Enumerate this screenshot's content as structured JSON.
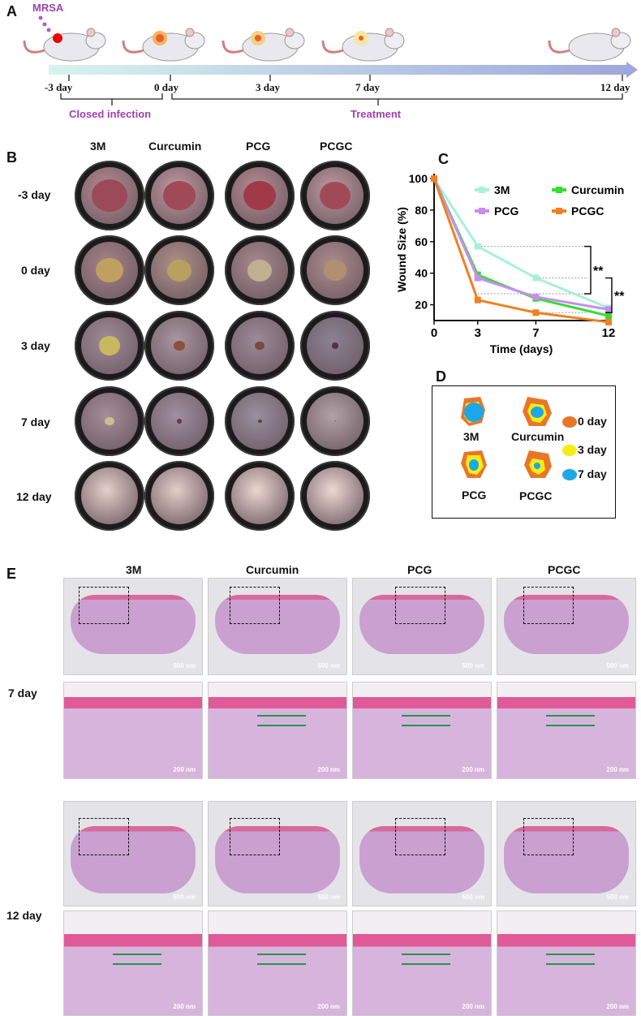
{
  "panelA": {
    "letter": "A",
    "pathogen": "MRSA",
    "timeline_ticks": [
      "-3 day",
      "0 day",
      "3 day",
      "7 day",
      "12 day"
    ],
    "phase_labels": [
      "Closed infection",
      "Treatment"
    ]
  },
  "panelB": {
    "letter": "B",
    "columns": [
      "3M",
      "Curcumin",
      "PCG",
      "PCGC"
    ],
    "rows": [
      "-3 day",
      "0 day",
      "3 day",
      "7 day",
      "12 day"
    ]
  },
  "panelC": {
    "letter": "C",
    "significance": [
      "**",
      "**"
    ]
  },
  "panelD": {
    "letter": "D",
    "groups": [
      "3M",
      "Curcumin",
      "PCG",
      "PCGC"
    ],
    "legend": [
      {
        "label": "0 day",
        "color": "#e8762a"
      },
      {
        "label": "3 day",
        "color": "#f5ec15"
      },
      {
        "label": "7 day",
        "color": "#1ea7e6"
      }
    ]
  },
  "panelE": {
    "letter": "E",
    "columns": [
      "3M",
      "Curcumin",
      "PCG",
      "PCGC"
    ],
    "rows": [
      "7 day",
      "12 day"
    ],
    "scale_low": "500 nm",
    "scale_high": "200 nm"
  },
  "chart_data": {
    "type": "line",
    "xlabel": "Time (days)",
    "ylabel": "Wound Size (%)",
    "x": [
      0,
      3,
      7,
      12
    ],
    "xlim": [
      0,
      12
    ],
    "ylim": [
      10,
      100
    ],
    "yticks": [
      20,
      40,
      60,
      80,
      100
    ],
    "grid": false,
    "legend_position": "top-right",
    "series": [
      {
        "name": "3M",
        "color": "#a8f0d8",
        "values": [
          100,
          57,
          37,
          18
        ]
      },
      {
        "name": "Curcumin",
        "color": "#33dd33",
        "values": [
          100,
          39,
          24,
          13
        ]
      },
      {
        "name": "PCG",
        "color": "#c98cf0",
        "values": [
          100,
          37,
          25,
          17
        ]
      },
      {
        "name": "PCGC",
        "color": "#f08020",
        "values": [
          100,
          23,
          15,
          9
        ]
      }
    ]
  }
}
